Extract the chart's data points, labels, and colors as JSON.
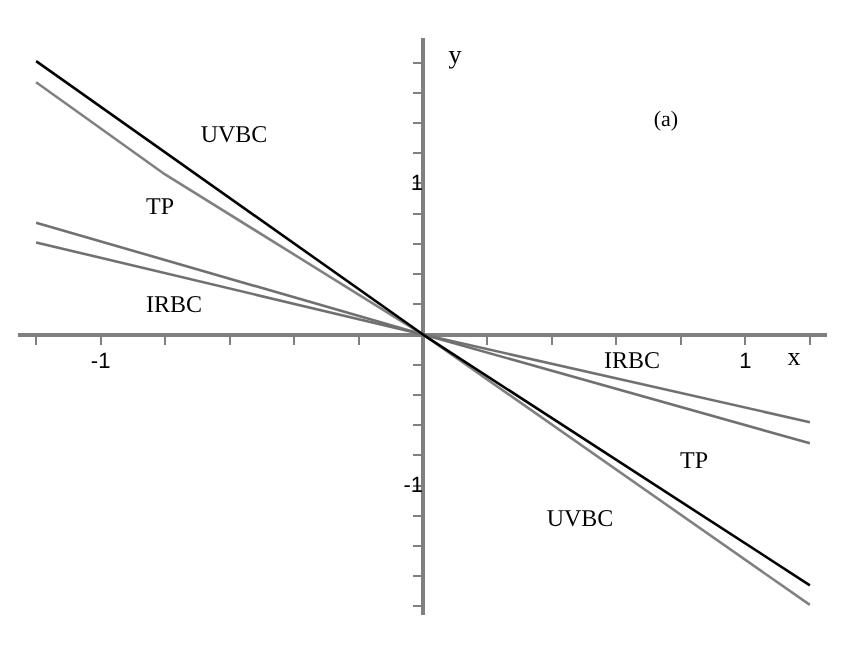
{
  "chart_data": {
    "type": "line",
    "xlabel": "x",
    "ylabel": "y",
    "xlim": [
      -1.25,
      1.25
    ],
    "ylim": [
      -1.85,
      1.95
    ],
    "xticks": [
      {
        "value": -1.2,
        "label": null
      },
      {
        "value": -1,
        "label": "-1"
      },
      {
        "value": -0.8,
        "label": null
      },
      {
        "value": -0.6,
        "label": null
      },
      {
        "value": -0.4,
        "label": null
      },
      {
        "value": -0.2,
        "label": null
      },
      {
        "value": 0.2,
        "label": null
      },
      {
        "value": 0.4,
        "label": null
      },
      {
        "value": 0.6,
        "label": null
      },
      {
        "value": 0.8,
        "label": null
      },
      {
        "value": 1,
        "label": "1"
      },
      {
        "value": 1.2,
        "label": null
      }
    ],
    "yticks": [
      {
        "value": -1.8,
        "label": null
      },
      {
        "value": -1.6,
        "label": null
      },
      {
        "value": -1.4,
        "label": null
      },
      {
        "value": -1.2,
        "label": null
      },
      {
        "value": -1,
        "label": "-1"
      },
      {
        "value": -0.8,
        "label": null
      },
      {
        "value": -0.6,
        "label": null
      },
      {
        "value": -0.4,
        "label": null
      },
      {
        "value": -0.2,
        "label": null
      },
      {
        "value": 0.2,
        "label": null
      },
      {
        "value": 0.4,
        "label": null
      },
      {
        "value": 0.6,
        "label": null
      },
      {
        "value": 0.8,
        "label": null
      },
      {
        "value": 1,
        "label": "1"
      },
      {
        "value": 1.2,
        "label": null
      },
      {
        "value": 1.4,
        "label": null
      },
      {
        "value": 1.6,
        "label": null
      },
      {
        "value": 1.8,
        "label": null
      }
    ],
    "grid": false,
    "legend": false,
    "marker": "none",
    "line_style": "solid",
    "series": [
      {
        "color": "#000000",
        "x": [
          -1.2,
          0,
          1.2
        ],
        "values": [
          1.81,
          0,
          -1.66
        ]
      },
      {
        "color": "#808080",
        "x": [
          -1.2,
          -0.8,
          0,
          1.2
        ],
        "values": [
          1.67,
          1.06,
          0,
          -1.79
        ]
      },
      {
        "color": "#707070",
        "x": [
          -1.2,
          0,
          1.2
        ],
        "values": [
          0.74,
          0,
          -0.72
        ]
      },
      {
        "color": "#707070",
        "x": [
          -1.2,
          0,
          1.2
        ],
        "values": [
          0.61,
          0,
          -0.58
        ]
      }
    ],
    "annotations": [
      "UVBC",
      "TP",
      "IRBC",
      "IRBC",
      "TP",
      "UVBC",
      "(a)"
    ]
  }
}
